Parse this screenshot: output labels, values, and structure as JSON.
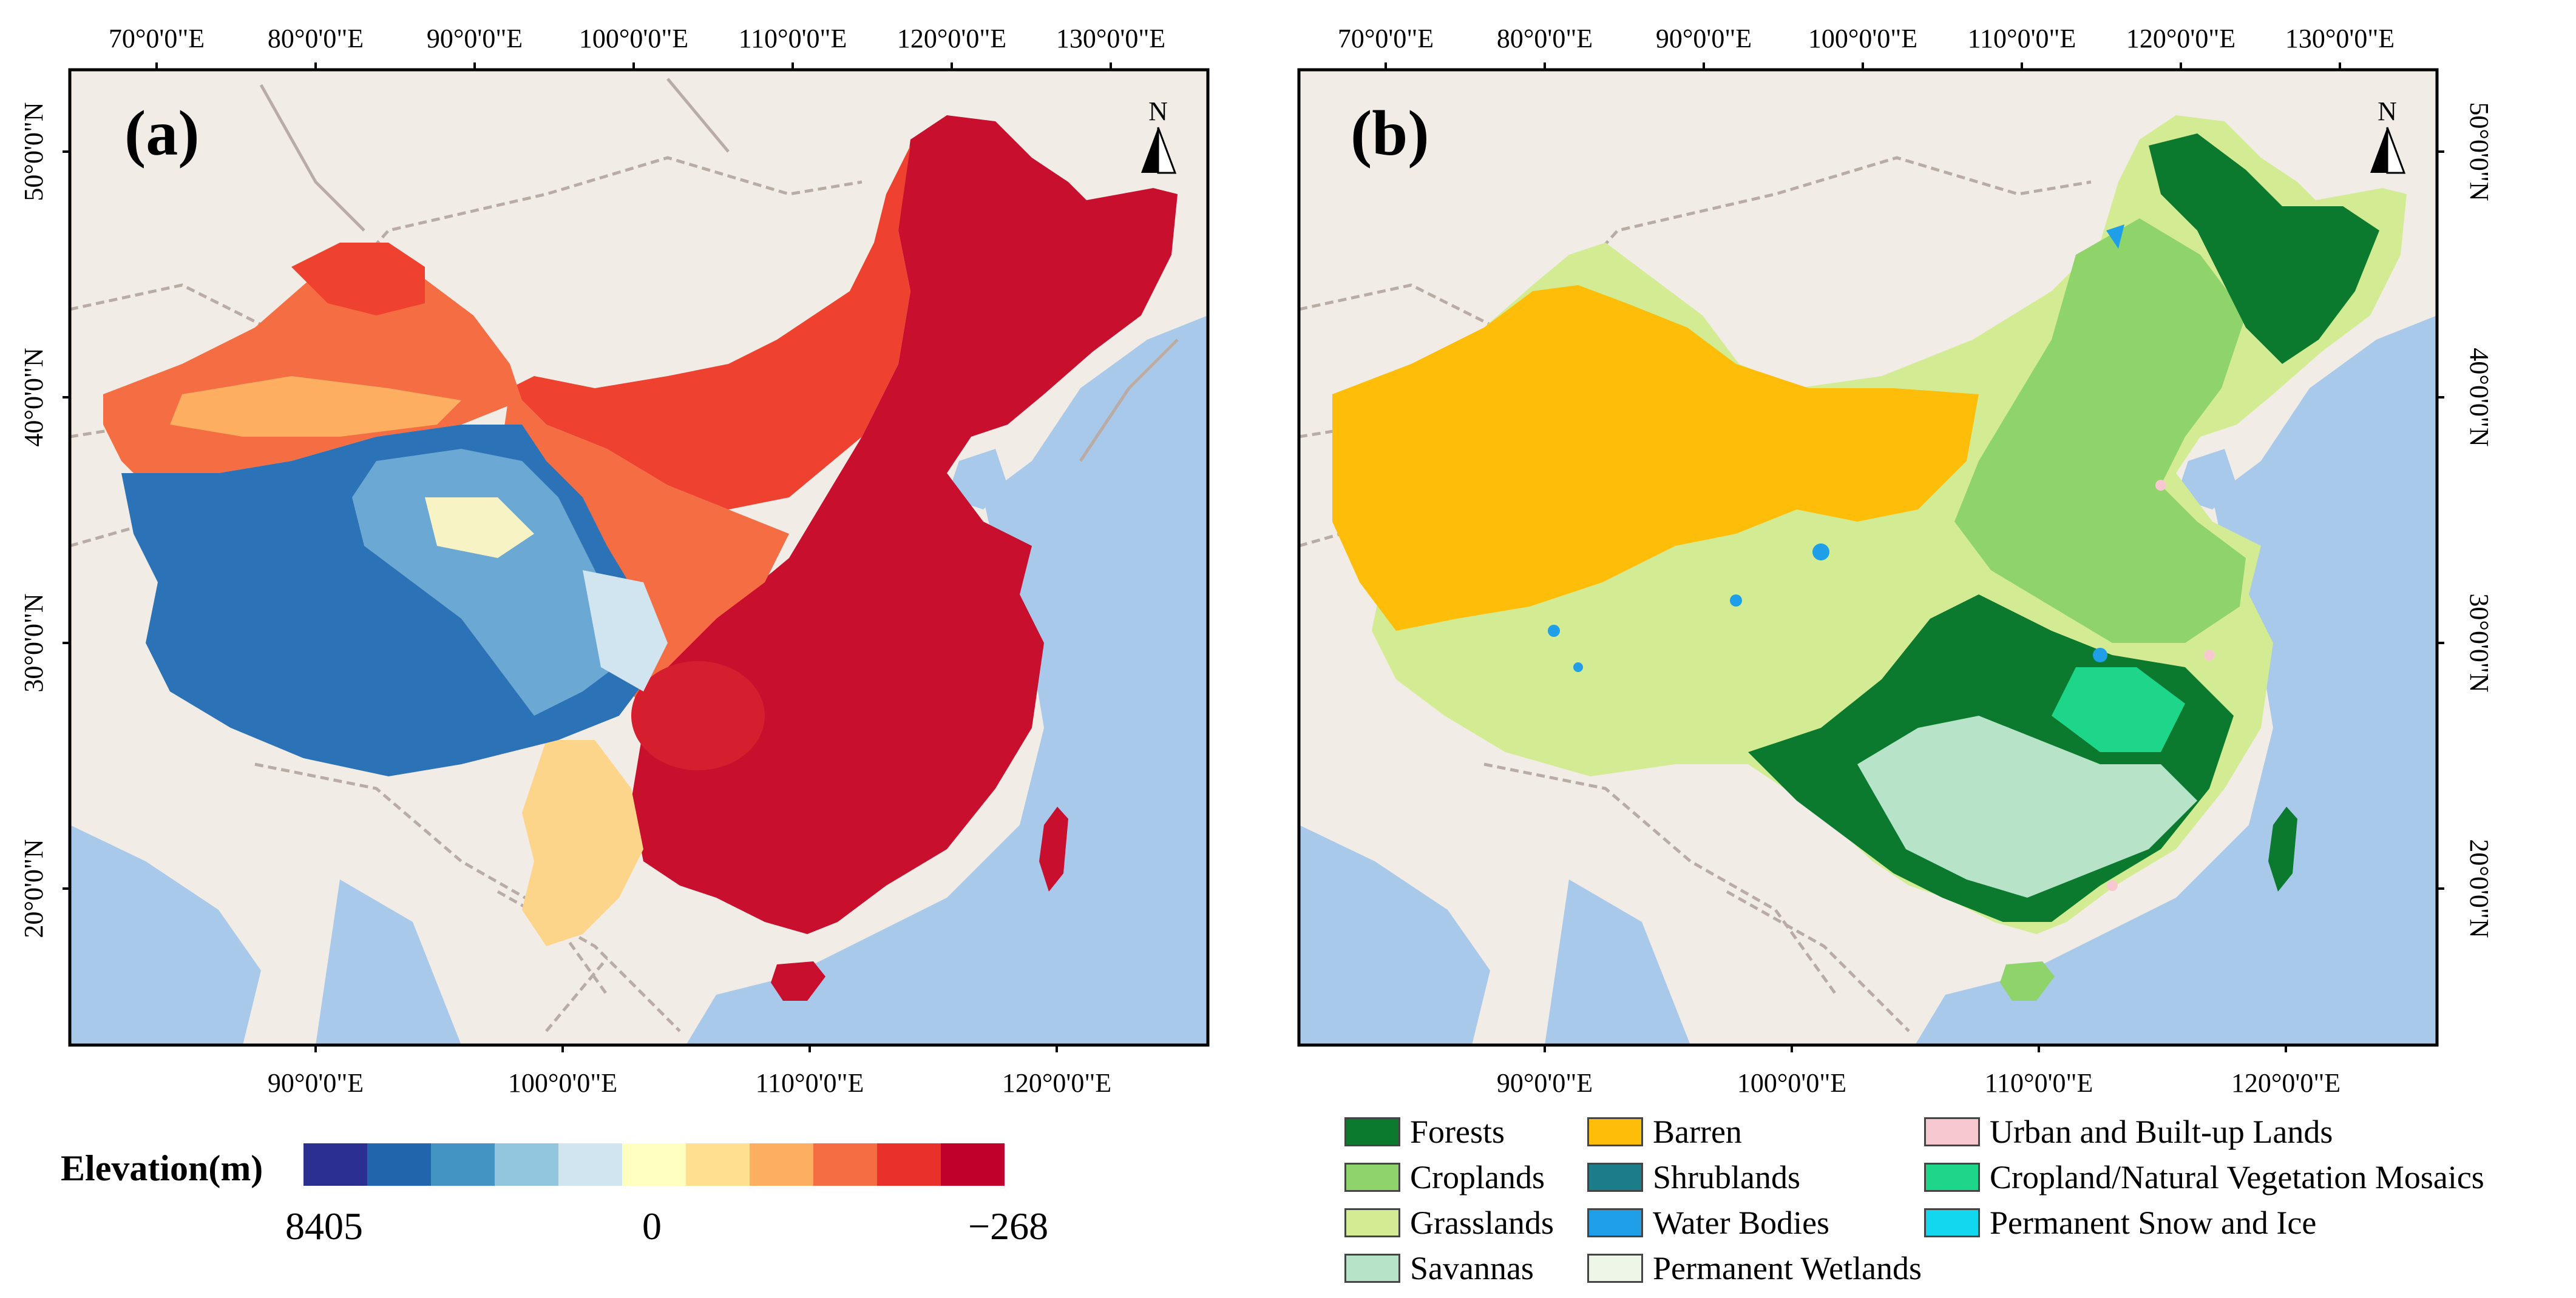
{
  "panels": [
    {
      "label": "(a)",
      "top_ticks": [
        "70°0'0\"E",
        "80°0'0\"E",
        "90°0'0\"E",
        "100°0'0\"E",
        "110°0'0\"E",
        "120°0'0\"E",
        "130°0'0\"E"
      ],
      "bottom_ticks": [
        "90°0'0\"E",
        "100°0'0\"E",
        "110°0'0\"E",
        "120°0'0\"E"
      ],
      "lat_ticks": [
        "50°0'0\"N",
        "40°0'0\"N",
        "30°0'0\"N",
        "20°0'0\"N"
      ],
      "north": "N"
    },
    {
      "label": "(b)",
      "top_ticks": [
        "70°0'0\"E",
        "80°0'0\"E",
        "90°0'0\"E",
        "100°0'0\"E",
        "110°0'0\"E",
        "120°0'0\"E",
        "130°0'0\"E"
      ],
      "bottom_ticks": [
        "90°0'0\"E",
        "100°0'0\"E",
        "110°0'0\"E",
        "120°0'0\"E"
      ],
      "lat_ticks": [
        "50°0'0\"N",
        "40°0'0\"N",
        "30°0'0\"N",
        "20°0'0\"N"
      ],
      "north": "N"
    }
  ],
  "elevation_legend": {
    "title": "Elevation(m)",
    "max_label": "8405",
    "mid_label": "0",
    "min_label": "−268",
    "colors": [
      "#2b2f8f",
      "#2166ac",
      "#4393c3",
      "#92c5de",
      "#d1e5f0",
      "#ffffbf",
      "#fee090",
      "#fdae61",
      "#f46d43",
      "#e9302a",
      "#c0002a"
    ]
  },
  "landcover_legend": [
    {
      "label": "Forests",
      "color": "#0b7a2e"
    },
    {
      "label": "Croplands",
      "color": "#8fd36b"
    },
    {
      "label": "Grasslands",
      "color": "#d3ec94"
    },
    {
      "label": "Savannas",
      "color": "#b7e3c9"
    },
    {
      "label": "Barren",
      "color": "#fdbd09"
    },
    {
      "label": "Shrublands",
      "color": "#1b7d8a"
    },
    {
      "label": "Water Bodies",
      "color": "#1f9fe8"
    },
    {
      "label": "Permanent Wetlands",
      "color": "#eef6e8"
    },
    {
      "label": "Urban and Built-up Lands",
      "color": "#f8c8d0"
    },
    {
      "label": "Cropland/Natural Vegetation Mosaics",
      "color": "#1ed68a"
    },
    {
      "label": "Permanent Snow and Ice",
      "color": "#12d7ef"
    }
  ],
  "map_colors": {
    "land": "#f1ece6",
    "sea": "#a9c9ea",
    "border": "#b8aca4"
  }
}
